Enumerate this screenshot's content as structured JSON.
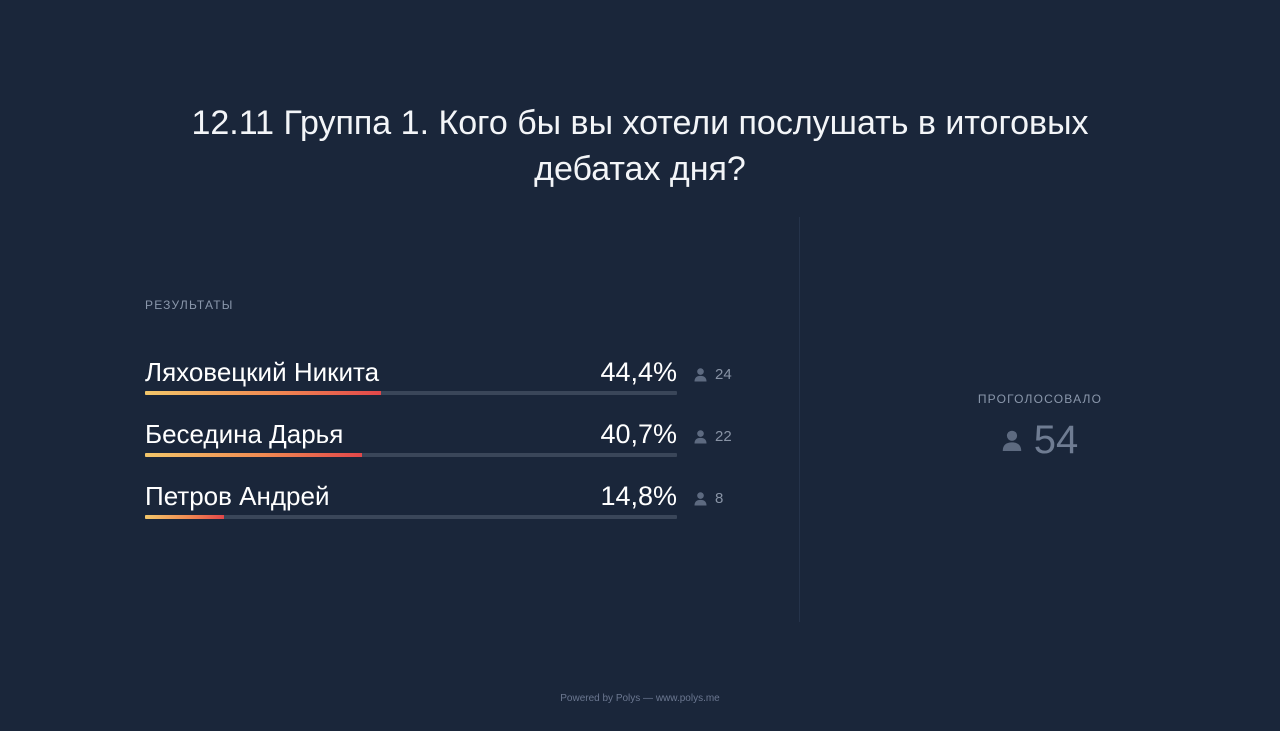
{
  "poll": {
    "question": "12.11 Группа 1. Кого бы вы хотели послушать в итоговых дебатах дня?",
    "results_label": "РЕЗУЛЬТАТЫ",
    "options": [
      {
        "name": "Ляховецкий Никита",
        "percent_label": "44,4%",
        "percent": 44.4,
        "votes": "24"
      },
      {
        "name": "Беседина Дарья",
        "percent_label": "40,7%",
        "percent": 40.7,
        "votes": "22"
      },
      {
        "name": "Петров Андрей",
        "percent_label": "14,8%",
        "percent": 14.8,
        "votes": "8"
      }
    ],
    "voted_label": "ПРОГОЛОСОВАЛО",
    "voted_count": "54"
  },
  "footer": {
    "text": "Powered by Polys — www.polys.me"
  },
  "colors": {
    "background": "#1a263a",
    "bar_track": "#3a4659",
    "bar_gradient_start": "#f2c66a",
    "bar_gradient_end": "#e2474a"
  },
  "icons": {
    "voter": "person-icon"
  }
}
